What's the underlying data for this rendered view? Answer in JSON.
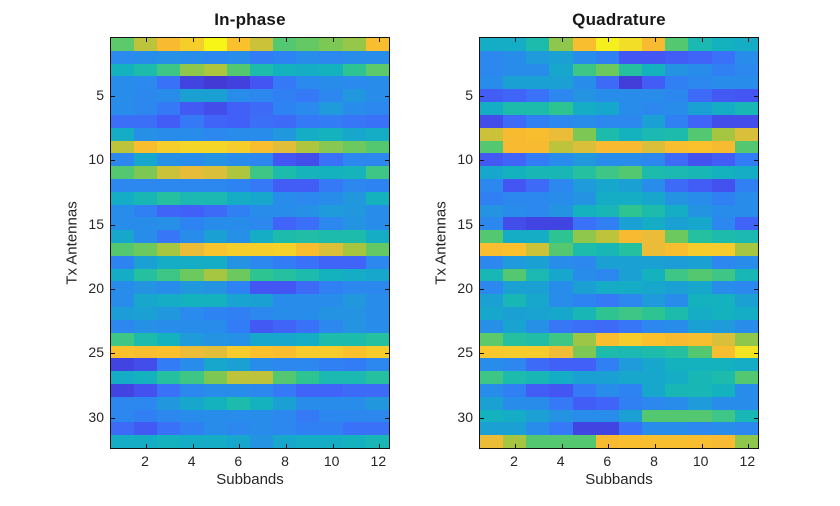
{
  "figure": {
    "background": "#ffffff",
    "axis_line_color": "#131313",
    "tick_label_color": "#262626",
    "title_color": "#171717"
  },
  "colormap_stops": [
    [
      0.0,
      "#3e26a8"
    ],
    [
      0.05,
      "#4433cd"
    ],
    [
      0.1,
      "#4244e2"
    ],
    [
      0.14,
      "#4355f2"
    ],
    [
      0.18,
      "#4064f8"
    ],
    [
      0.22,
      "#3972f8"
    ],
    [
      0.26,
      "#3080f4"
    ],
    [
      0.3,
      "#288dea"
    ],
    [
      0.34,
      "#1f9ada"
    ],
    [
      0.38,
      "#17a6cc"
    ],
    [
      0.42,
      "#14b1bf"
    ],
    [
      0.46,
      "#1dbbac"
    ],
    [
      0.5,
      "#2ec492"
    ],
    [
      0.54,
      "#4bc877"
    ],
    [
      0.58,
      "#6cc95e"
    ],
    [
      0.62,
      "#8ec74c"
    ],
    [
      0.66,
      "#aec53f"
    ],
    [
      0.7,
      "#ccc23a"
    ],
    [
      0.74,
      "#e7bc39"
    ],
    [
      0.78,
      "#f8ba31"
    ],
    [
      0.82,
      "#fac12d"
    ],
    [
      0.86,
      "#f5ce2b"
    ],
    [
      0.9,
      "#f2dd27"
    ],
    [
      0.95,
      "#f5ef1e"
    ],
    [
      1.0,
      "#f9fb0e"
    ]
  ],
  "chart_data": [
    {
      "type": "heatmap",
      "title": "In-phase",
      "xlabel": "Subbands",
      "ylabel": "Tx Antennas",
      "x_ticks": [
        2,
        4,
        6,
        8,
        10,
        12
      ],
      "y_ticks": [
        5,
        10,
        15,
        20,
        25,
        30
      ],
      "x_range": [
        0.5,
        12.5
      ],
      "y_range": [
        0.5,
        32.5
      ],
      "y_direction": "reverse",
      "n_rows": 32,
      "n_cols": 12,
      "colormap": "parula",
      "grid": false,
      "values": [
        [
          0.56,
          0.68,
          0.78,
          0.86,
          0.97,
          0.82,
          0.7,
          0.55,
          0.57,
          0.6,
          0.63,
          0.8
        ],
        [
          0.29,
          0.3,
          0.31,
          0.3,
          0.28,
          0.3,
          0.25,
          0.27,
          0.3,
          0.28,
          0.3,
          0.3
        ],
        [
          0.42,
          0.46,
          0.52,
          0.62,
          0.66,
          0.55,
          0.46,
          0.42,
          0.4,
          0.42,
          0.5,
          0.56
        ],
        [
          0.3,
          0.29,
          0.22,
          0.1,
          0.07,
          0.09,
          0.14,
          0.24,
          0.29,
          0.3,
          0.29,
          0.3
        ],
        [
          0.3,
          0.28,
          0.3,
          0.36,
          0.36,
          0.3,
          0.28,
          0.26,
          0.24,
          0.28,
          0.33,
          0.3
        ],
        [
          0.3,
          0.28,
          0.24,
          0.15,
          0.12,
          0.17,
          0.2,
          0.27,
          0.29,
          0.34,
          0.3,
          0.28
        ],
        [
          0.21,
          0.21,
          0.16,
          0.24,
          0.18,
          0.17,
          0.21,
          0.2,
          0.24,
          0.25,
          0.23,
          0.22
        ],
        [
          0.4,
          0.31,
          0.3,
          0.3,
          0.28,
          0.3,
          0.3,
          0.33,
          0.4,
          0.42,
          0.38,
          0.4
        ],
        [
          0.68,
          0.8,
          0.86,
          0.88,
          0.88,
          0.86,
          0.8,
          0.73,
          0.66,
          0.61,
          0.58,
          0.55
        ],
        [
          0.28,
          0.38,
          0.31,
          0.3,
          0.32,
          0.3,
          0.28,
          0.14,
          0.12,
          0.22,
          0.28,
          0.28
        ],
        [
          0.55,
          0.6,
          0.7,
          0.74,
          0.72,
          0.66,
          0.52,
          0.46,
          0.43,
          0.42,
          0.43,
          0.52
        ],
        [
          0.28,
          0.28,
          0.28,
          0.28,
          0.28,
          0.27,
          0.24,
          0.16,
          0.16,
          0.24,
          0.28,
          0.27
        ],
        [
          0.4,
          0.44,
          0.48,
          0.45,
          0.45,
          0.4,
          0.38,
          0.3,
          0.28,
          0.3,
          0.33,
          0.42
        ],
        [
          0.3,
          0.26,
          0.18,
          0.17,
          0.2,
          0.26,
          0.3,
          0.3,
          0.31,
          0.34,
          0.33,
          0.3
        ],
        [
          0.3,
          0.3,
          0.31,
          0.27,
          0.3,
          0.3,
          0.28,
          0.18,
          0.21,
          0.28,
          0.32,
          0.3
        ],
        [
          0.38,
          0.3,
          0.23,
          0.3,
          0.36,
          0.31,
          0.4,
          0.46,
          0.47,
          0.46,
          0.46,
          0.4
        ],
        [
          0.55,
          0.58,
          0.65,
          0.75,
          0.83,
          0.86,
          0.86,
          0.87,
          0.8,
          0.72,
          0.65,
          0.57
        ],
        [
          0.27,
          0.36,
          0.4,
          0.4,
          0.4,
          0.32,
          0.28,
          0.25,
          0.22,
          0.18,
          0.18,
          0.28
        ],
        [
          0.4,
          0.48,
          0.52,
          0.58,
          0.65,
          0.58,
          0.5,
          0.48,
          0.46,
          0.42,
          0.4,
          0.38
        ],
        [
          0.3,
          0.32,
          0.3,
          0.33,
          0.32,
          0.27,
          0.14,
          0.14,
          0.2,
          0.26,
          0.28,
          0.28
        ],
        [
          0.3,
          0.38,
          0.4,
          0.42,
          0.42,
          0.37,
          0.36,
          0.3,
          0.3,
          0.3,
          0.33,
          0.3
        ],
        [
          0.35,
          0.36,
          0.33,
          0.29,
          0.27,
          0.26,
          0.28,
          0.3,
          0.3,
          0.32,
          0.32,
          0.3
        ],
        [
          0.28,
          0.31,
          0.3,
          0.3,
          0.3,
          0.25,
          0.15,
          0.18,
          0.22,
          0.28,
          0.32,
          0.3
        ],
        [
          0.52,
          0.46,
          0.42,
          0.34,
          0.32,
          0.31,
          0.38,
          0.38,
          0.4,
          0.46,
          0.46,
          0.48
        ],
        [
          0.82,
          0.8,
          0.82,
          0.75,
          0.73,
          0.85,
          0.82,
          0.8,
          0.85,
          0.85,
          0.82,
          0.85
        ],
        [
          0.1,
          0.12,
          0.25,
          0.3,
          0.38,
          0.36,
          0.3,
          0.28,
          0.28,
          0.26,
          0.25,
          0.28
        ],
        [
          0.4,
          0.42,
          0.48,
          0.52,
          0.6,
          0.68,
          0.68,
          0.55,
          0.5,
          0.45,
          0.45,
          0.48
        ],
        [
          0.1,
          0.13,
          0.22,
          0.28,
          0.3,
          0.3,
          0.28,
          0.24,
          0.18,
          0.18,
          0.2,
          0.2
        ],
        [
          0.28,
          0.28,
          0.33,
          0.38,
          0.42,
          0.46,
          0.42,
          0.36,
          0.3,
          0.3,
          0.3,
          0.33
        ],
        [
          0.28,
          0.26,
          0.28,
          0.3,
          0.3,
          0.3,
          0.3,
          0.28,
          0.24,
          0.28,
          0.28,
          0.28
        ],
        [
          0.2,
          0.15,
          0.22,
          0.26,
          0.3,
          0.28,
          0.3,
          0.28,
          0.26,
          0.26,
          0.22,
          0.22
        ],
        [
          0.4,
          0.4,
          0.42,
          0.4,
          0.4,
          0.38,
          0.32,
          0.38,
          0.4,
          0.4,
          0.42,
          0.44
        ]
      ]
    },
    {
      "type": "heatmap",
      "title": "Quadrature",
      "xlabel": "Subbands",
      "ylabel": "Tx Antennas",
      "x_ticks": [
        2,
        4,
        6,
        8,
        10,
        12
      ],
      "y_ticks": [
        5,
        10,
        15,
        20,
        25,
        30
      ],
      "x_range": [
        0.5,
        12.5
      ],
      "y_range": [
        0.5,
        32.5
      ],
      "y_direction": "reverse",
      "n_rows": 32,
      "n_cols": 12,
      "colormap": "parula",
      "grid": false,
      "values": [
        [
          0.4,
          0.4,
          0.46,
          0.62,
          0.8,
          0.95,
          0.9,
          0.78,
          0.55,
          0.45,
          0.42,
          0.4
        ],
        [
          0.28,
          0.3,
          0.34,
          0.36,
          0.3,
          0.26,
          0.14,
          0.14,
          0.16,
          0.18,
          0.22,
          0.3
        ],
        [
          0.28,
          0.3,
          0.3,
          0.38,
          0.52,
          0.58,
          0.48,
          0.42,
          0.32,
          0.3,
          0.26,
          0.28
        ],
        [
          0.3,
          0.36,
          0.36,
          0.36,
          0.3,
          0.2,
          0.08,
          0.16,
          0.26,
          0.28,
          0.3,
          0.3
        ],
        [
          0.16,
          0.18,
          0.22,
          0.28,
          0.32,
          0.3,
          0.3,
          0.3,
          0.28,
          0.2,
          0.15,
          0.14
        ],
        [
          0.4,
          0.46,
          0.46,
          0.5,
          0.4,
          0.38,
          0.3,
          0.28,
          0.3,
          0.36,
          0.4,
          0.44
        ],
        [
          0.12,
          0.2,
          0.26,
          0.28,
          0.3,
          0.28,
          0.28,
          0.36,
          0.26,
          0.18,
          0.12,
          0.12
        ],
        [
          0.7,
          0.78,
          0.8,
          0.75,
          0.6,
          0.46,
          0.42,
          0.45,
          0.46,
          0.55,
          0.65,
          0.72
        ],
        [
          0.55,
          0.78,
          0.78,
          0.68,
          0.72,
          0.78,
          0.78,
          0.72,
          0.8,
          0.82,
          0.78,
          0.55
        ],
        [
          0.15,
          0.18,
          0.25,
          0.3,
          0.33,
          0.3,
          0.3,
          0.28,
          0.2,
          0.13,
          0.16,
          0.25
        ],
        [
          0.38,
          0.42,
          0.44,
          0.44,
          0.48,
          0.52,
          0.55,
          0.46,
          0.45,
          0.44,
          0.42,
          0.4
        ],
        [
          0.28,
          0.14,
          0.2,
          0.28,
          0.34,
          0.38,
          0.36,
          0.3,
          0.2,
          0.16,
          0.13,
          0.26
        ],
        [
          0.26,
          0.28,
          0.28,
          0.3,
          0.32,
          0.4,
          0.4,
          0.38,
          0.32,
          0.3,
          0.26,
          0.3
        ],
        [
          0.32,
          0.3,
          0.28,
          0.32,
          0.42,
          0.44,
          0.5,
          0.46,
          0.4,
          0.32,
          0.3,
          0.3
        ],
        [
          0.28,
          0.12,
          0.1,
          0.1,
          0.22,
          0.26,
          0.36,
          0.4,
          0.36,
          0.38,
          0.28,
          0.18
        ],
        [
          0.55,
          0.4,
          0.4,
          0.5,
          0.62,
          0.68,
          0.78,
          0.75,
          0.58,
          0.48,
          0.46,
          0.45
        ],
        [
          0.8,
          0.82,
          0.7,
          0.55,
          0.46,
          0.44,
          0.48,
          0.75,
          0.8,
          0.85,
          0.85,
          0.65
        ],
        [
          0.28,
          0.34,
          0.36,
          0.3,
          0.28,
          0.36,
          0.36,
          0.36,
          0.35,
          0.36,
          0.28,
          0.3
        ],
        [
          0.44,
          0.55,
          0.45,
          0.38,
          0.3,
          0.28,
          0.36,
          0.42,
          0.52,
          0.55,
          0.52,
          0.44
        ],
        [
          0.28,
          0.36,
          0.36,
          0.3,
          0.36,
          0.4,
          0.4,
          0.38,
          0.36,
          0.38,
          0.3,
          0.28
        ],
        [
          0.36,
          0.44,
          0.38,
          0.3,
          0.27,
          0.24,
          0.28,
          0.34,
          0.3,
          0.42,
          0.42,
          0.36
        ],
        [
          0.38,
          0.36,
          0.37,
          0.38,
          0.44,
          0.5,
          0.52,
          0.5,
          0.46,
          0.4,
          0.42,
          0.4
        ],
        [
          0.31,
          0.37,
          0.31,
          0.23,
          0.21,
          0.2,
          0.23,
          0.28,
          0.3,
          0.36,
          0.34,
          0.3
        ],
        [
          0.56,
          0.48,
          0.47,
          0.52,
          0.64,
          0.8,
          0.85,
          0.82,
          0.78,
          0.8,
          0.72,
          0.62
        ],
        [
          0.84,
          0.85,
          0.85,
          0.76,
          0.6,
          0.46,
          0.45,
          0.46,
          0.48,
          0.55,
          0.8,
          0.92
        ],
        [
          0.3,
          0.28,
          0.2,
          0.17,
          0.17,
          0.26,
          0.34,
          0.38,
          0.42,
          0.42,
          0.42,
          0.4
        ],
        [
          0.52,
          0.46,
          0.44,
          0.4,
          0.36,
          0.36,
          0.38,
          0.38,
          0.4,
          0.44,
          0.46,
          0.55
        ],
        [
          0.3,
          0.26,
          0.16,
          0.14,
          0.24,
          0.3,
          0.27,
          0.38,
          0.44,
          0.44,
          0.42,
          0.3
        ],
        [
          0.36,
          0.3,
          0.3,
          0.24,
          0.16,
          0.18,
          0.26,
          0.28,
          0.3,
          0.34,
          0.3,
          0.3
        ],
        [
          0.42,
          0.4,
          0.36,
          0.32,
          0.3,
          0.3,
          0.36,
          0.55,
          0.55,
          0.55,
          0.52,
          0.44
        ],
        [
          0.36,
          0.36,
          0.3,
          0.24,
          0.1,
          0.1,
          0.22,
          0.3,
          0.3,
          0.28,
          0.3,
          0.28
        ],
        [
          0.75,
          0.65,
          0.55,
          0.55,
          0.55,
          0.78,
          0.8,
          0.8,
          0.8,
          0.8,
          0.78,
          0.62
        ]
      ]
    }
  ]
}
